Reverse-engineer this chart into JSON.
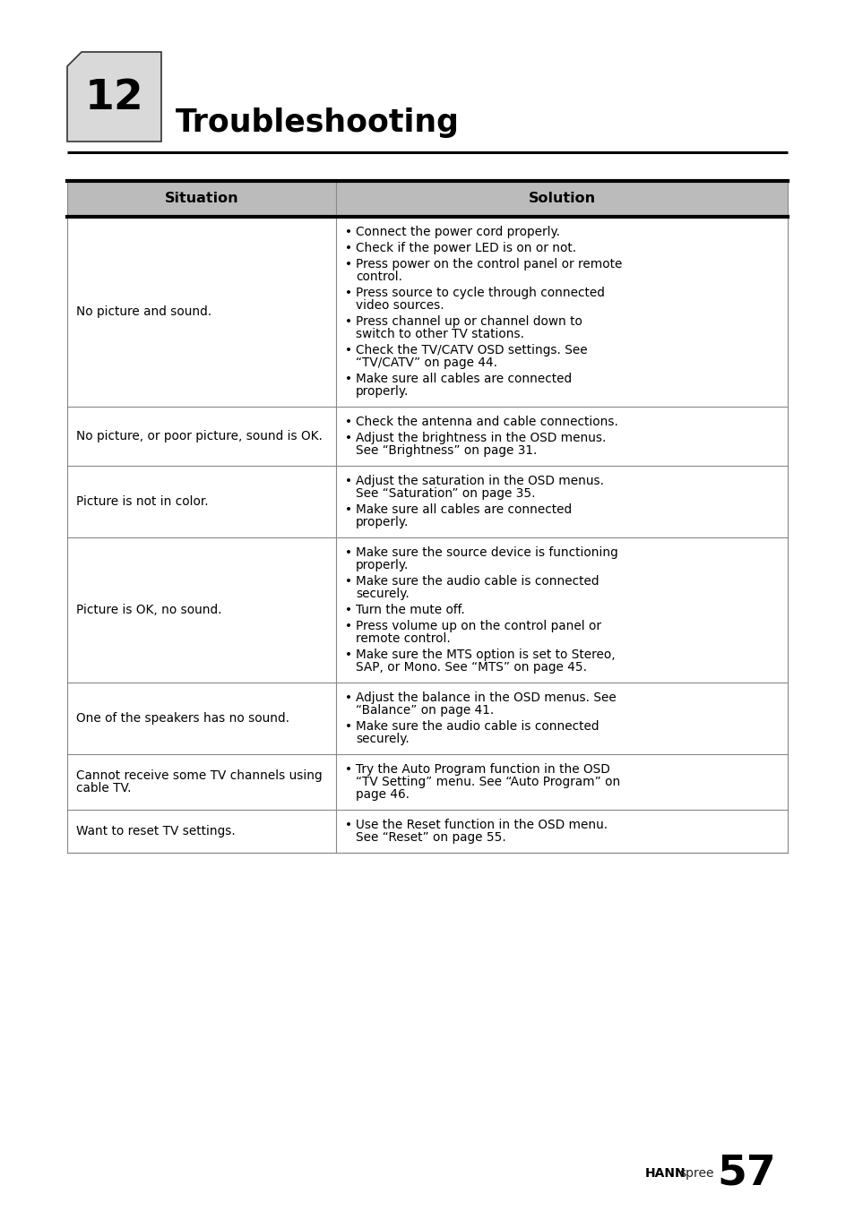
{
  "page_bg": "#ffffff",
  "chapter_num": "12",
  "chapter_title": "Troubleshooting",
  "table_header_bg": "#bbbbbb",
  "col1_header": "Situation",
  "col2_header": "Solution",
  "rows": [
    {
      "situation": "No picture and sound.",
      "solutions": [
        "Connect the power cord properly.",
        "Check if the power LED is on or not.",
        "Press power on the control panel or remote\ncontrol.",
        "Press source to cycle through connected\nvideo sources.",
        "Press channel up or channel down to\nswitch to other TV stations.",
        "Check the TV/CATV OSD settings. See\n“TV/CATV” on page 44.",
        "Make sure all cables are connected\nproperly."
      ]
    },
    {
      "situation": "No picture, or poor picture, sound is OK.",
      "solutions": [
        "Check the antenna and cable connections.",
        "Adjust the brightness in the OSD menus.\nSee “Brightness” on page 31."
      ]
    },
    {
      "situation": "Picture is not in color.",
      "solutions": [
        "Adjust the saturation in the OSD menus.\nSee “Saturation” on page 35.",
        "Make sure all cables are connected\nproperly."
      ]
    },
    {
      "situation": "Picture is OK, no sound.",
      "solutions": [
        "Make sure the source device is functioning\nproperly.",
        "Make sure the audio cable is connected\nsecurely.",
        "Turn the mute off.",
        "Press volume up on the control panel or\nremote control.",
        "Make sure the MTS option is set to Stereo,\nSAP, or Mono. See “MTS” on page 45."
      ]
    },
    {
      "situation": "One of the speakers has no sound.",
      "solutions": [
        "Adjust the balance in the OSD menus. See\n“Balance” on page 41.",
        "Make sure the audio cable is connected\nsecurely."
      ]
    },
    {
      "situation": "Cannot receive some TV channels using\ncable TV.",
      "solutions": [
        "Try the Auto Program function in the OSD\n“TV Setting” menu. See “Auto Program” on\npage 46."
      ]
    },
    {
      "situation": "Want to reset TV settings.",
      "solutions": [
        "Use the Reset function in the OSD menu.\nSee “Reset” on page 55."
      ]
    }
  ],
  "box_fill": "#d9d9d9",
  "box_border": "#333333"
}
